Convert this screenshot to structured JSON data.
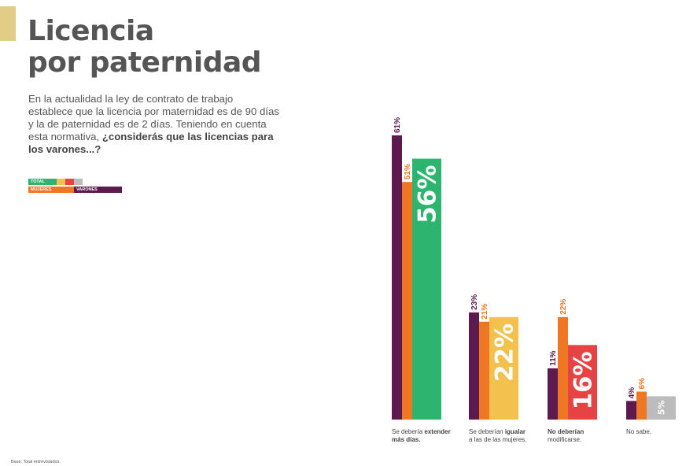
{
  "header": {
    "title_line1": "Licencia",
    "title_line2": "por paternidad"
  },
  "intro": {
    "text": "En la actualidad la ley de contrato de trabajo establece que la licencia por maternidad es de 90 días y la de paternidad es de 2 días. Teniendo en cuenta esta normativa, ",
    "question": "¿considerás que las licencias para los varones...?"
  },
  "legend": {
    "total": "TOTAL",
    "mujeres": "MUJERES",
    "varones": "VARONES"
  },
  "colors": {
    "varones": "#5c1a4e",
    "mujeres": "#ef7622",
    "total_extender": "#2db46e",
    "total_igualar": "#f2c14e",
    "total_no_modificar": "#e84344",
    "total_no_sabe": "#bcbcbc",
    "accent": "#e2cd86"
  },
  "chart_data": {
    "type": "bar",
    "categories": [
      "Se debería extender más días.",
      "Se deberían igualar a las de las mujeres.",
      "No deberían modificarse.",
      "No sabe."
    ],
    "category_labels": [
      {
        "pre": "Se debería ",
        "bold": "extender",
        "post": "",
        "line2_bold": "más días.",
        "line2": ""
      },
      {
        "pre": "Se deberían ",
        "bold": "igualar",
        "post": "",
        "line2_bold": "",
        "line2": "a las de las mujeres."
      },
      {
        "pre": "",
        "bold": "No deberían",
        "post": "",
        "line2_bold": "",
        "line2": "modificarse."
      },
      {
        "pre": "No sabe.",
        "bold": "",
        "post": "",
        "line2_bold": "",
        "line2": ""
      }
    ],
    "series": [
      {
        "name": "VARONES",
        "values": [
          61,
          23,
          11,
          4
        ],
        "labels": [
          "61%",
          "23%",
          "11%",
          "4%"
        ]
      },
      {
        "name": "MUJERES",
        "values": [
          51,
          21,
          22,
          6
        ],
        "labels": [
          "51%",
          "21%",
          "22%",
          "6%"
        ]
      },
      {
        "name": "TOTAL",
        "values": [
          56,
          22,
          16,
          5
        ],
        "labels": [
          "56%",
          "22%",
          "16%",
          "5%"
        ]
      }
    ],
    "ylim": [
      0,
      61
    ]
  },
  "footnote": "Base: Total entrevistados."
}
